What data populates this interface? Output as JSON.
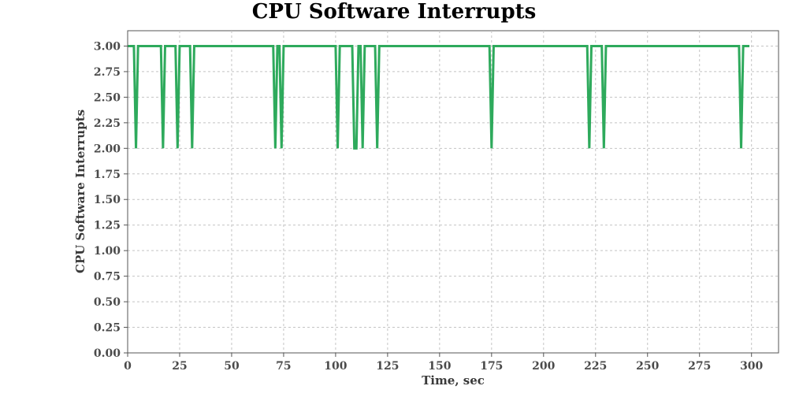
{
  "chart_data": {
    "type": "line",
    "title": "CPU Software Interrupts",
    "xlabel": "Time, sec",
    "ylabel": "CPU Software Interrupts",
    "xlim": [
      0,
      313
    ],
    "ylim": [
      0,
      3.15
    ],
    "grid": true,
    "xticks": [
      0,
      25,
      50,
      75,
      100,
      125,
      150,
      175,
      200,
      225,
      250,
      275,
      300
    ],
    "xtick_labels": [
      "0",
      "25",
      "50",
      "75",
      "100",
      "125",
      "150",
      "175",
      "200",
      "225",
      "250",
      "275",
      "300"
    ],
    "yticks": [
      0,
      0.25,
      0.5,
      0.75,
      1.0,
      1.25,
      1.5,
      1.75,
      2.0,
      2.25,
      2.5,
      2.75,
      3.0
    ],
    "ytick_labels": [
      "0.00",
      "0.25",
      "0.50",
      "0.75",
      "1.00",
      "1.25",
      "1.50",
      "1.75",
      "2.00",
      "2.25",
      "2.50",
      "2.75",
      "3.00"
    ],
    "series": [
      {
        "color": "#2eaa5c",
        "x": [
          0,
          3,
          4,
          5,
          16,
          17,
          18,
          23,
          24,
          25,
          30,
          31,
          32,
          70,
          71,
          72,
          73,
          74,
          75,
          100,
          101,
          102,
          108,
          109,
          110,
          111,
          112,
          113,
          114,
          119,
          120,
          121,
          174,
          175,
          176,
          221,
          222,
          223,
          228,
          229,
          230,
          294,
          295,
          296,
          299
        ],
        "y": [
          3,
          3,
          2,
          3,
          3,
          2,
          3,
          3,
          2,
          3,
          3,
          2,
          3,
          3,
          2,
          3,
          3,
          2,
          3,
          3,
          2,
          3,
          3,
          2,
          2,
          3,
          3,
          2,
          3,
          3,
          2,
          3,
          3,
          2,
          3,
          3,
          2,
          3,
          3,
          2,
          3,
          3,
          2,
          3,
          3
        ]
      }
    ]
  }
}
